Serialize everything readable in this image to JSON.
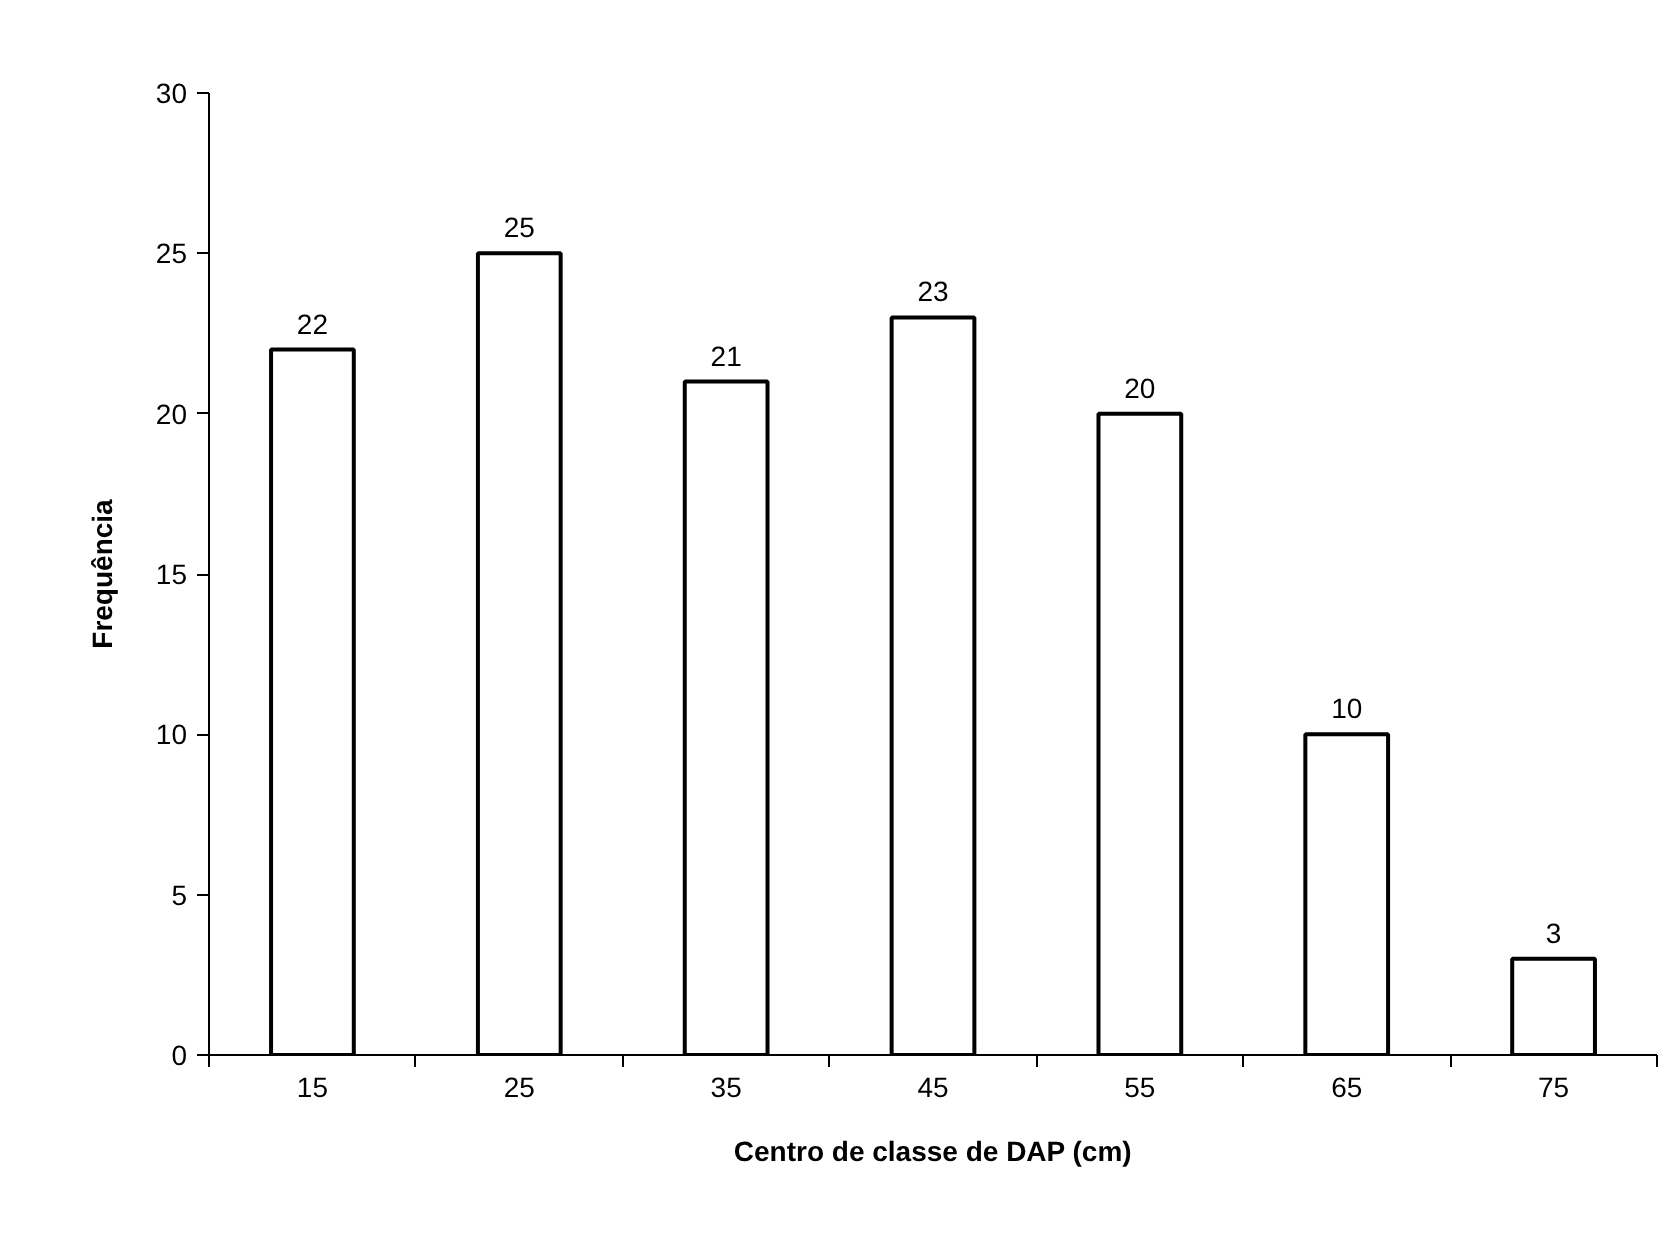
{
  "chart_data": {
    "type": "bar",
    "xlabel": "Centro de classe de DAP (cm)",
    "ylabel": "Frequência",
    "categories": [
      "15",
      "25",
      "35",
      "45",
      "55",
      "65",
      "75"
    ],
    "values": [
      22,
      25,
      21,
      23,
      20,
      10,
      3
    ],
    "color": "#ffffff",
    "ylim": [
      0,
      30
    ],
    "yticks": [
      0,
      5,
      10,
      15,
      20,
      25,
      30
    ],
    "grid": false,
    "data_labels": true
  }
}
